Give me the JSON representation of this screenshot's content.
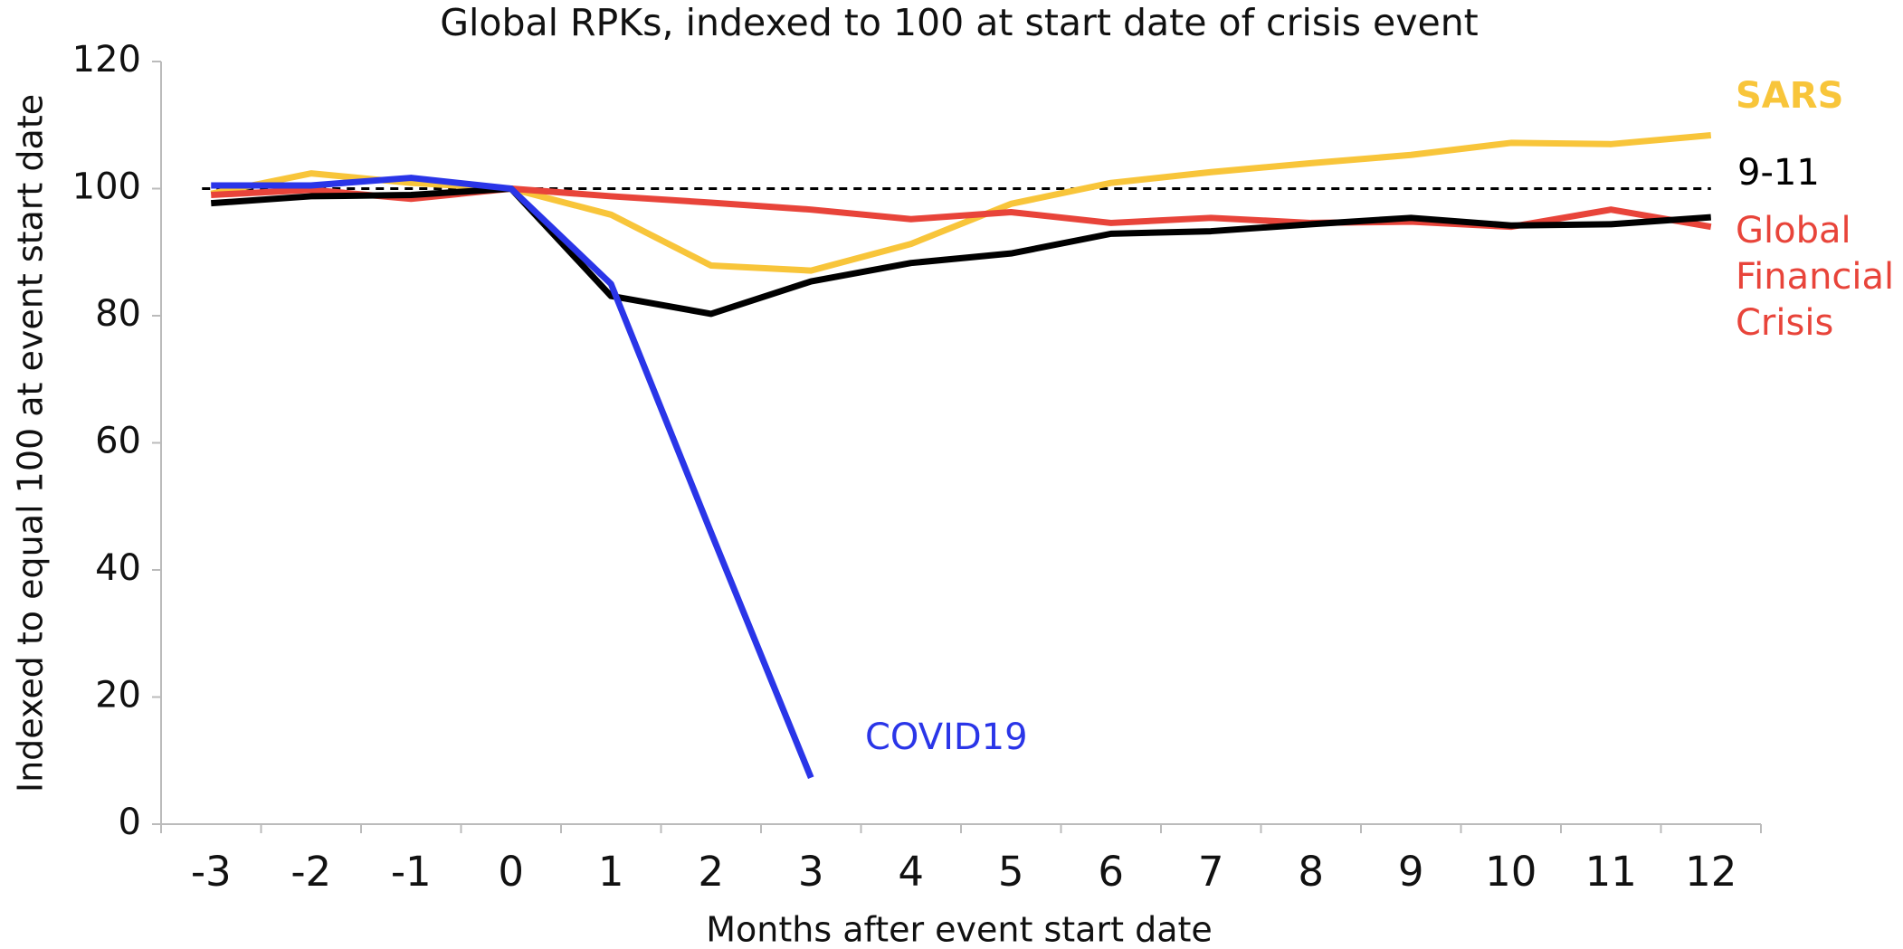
{
  "chart_data": {
    "type": "line",
    "title": "Global RPKs, indexed to 100 at start date of crisis event",
    "x_label": "Months after event start date",
    "y_label": "Indexed to equal 100 at event start date",
    "categories": [
      "-3",
      "-2",
      "-1",
      "0",
      "1",
      "2",
      "3",
      "4",
      "5",
      "6",
      "7",
      "8",
      "9",
      "10",
      "11",
      "12"
    ],
    "series": [
      {
        "name": "COVID19",
        "color": "#2a35e8",
        "values": [
          100.5,
          100.5,
          101.7,
          100,
          85,
          45.9,
          7.3,
          null,
          null,
          null,
          null,
          null,
          null,
          null,
          null,
          null
        ]
      },
      {
        "name": "SARS",
        "color": "#f8c53a",
        "values": [
          99.2,
          102.4,
          100.9,
          100,
          95.9,
          87.9,
          87.1,
          91.3,
          97.6,
          100.9,
          102.6,
          104,
          105.3,
          107.2,
          107,
          108.4
        ]
      },
      {
        "name": "Global Financial Crisis",
        "color": "#e8443a",
        "values": [
          99,
          99.8,
          98.4,
          100,
          98.8,
          97.8,
          96.7,
          95.2,
          96.3,
          94.6,
          95.4,
          94.6,
          94.8,
          94,
          96.7,
          94
        ]
      },
      {
        "name": "9-11",
        "color": "#000000",
        "values": [
          97.7,
          98.8,
          99,
          100,
          83.1,
          80.3,
          85.4,
          88.3,
          89.8,
          92.9,
          93.3,
          94.4,
          95.4,
          94.2,
          94.4,
          95.5
        ]
      }
    ],
    "reference_line": 100,
    "ylim": [
      0,
      120
    ],
    "yticks": [
      0,
      20,
      40,
      60,
      80,
      100,
      120
    ],
    "grid": false
  }
}
